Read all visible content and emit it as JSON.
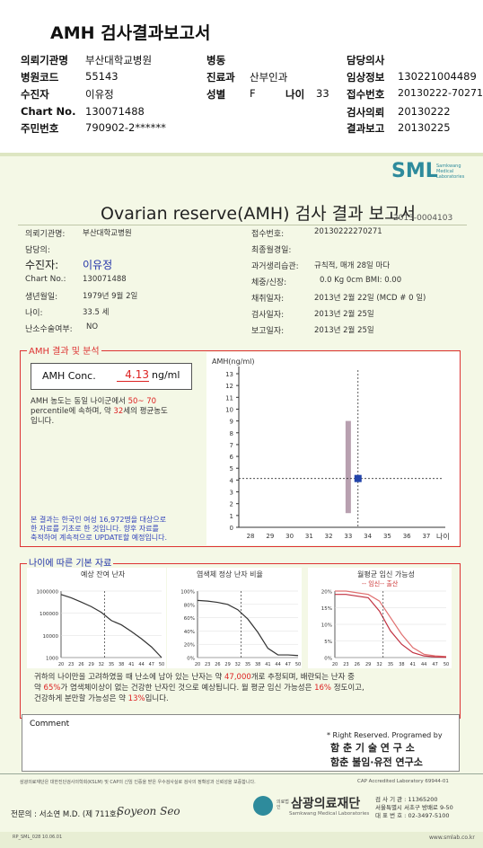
{
  "header": {
    "title": "AMH 검사결과보고서",
    "rows": [
      {
        "label": "의뢰기관명",
        "value": "부산대학교병원"
      },
      {
        "label": "병원코드",
        "value": "55143"
      },
      {
        "label": "수진자",
        "value": "이유정"
      },
      {
        "label": "Chart No.",
        "value": "130071488"
      },
      {
        "label": "주민번호",
        "value": "790902-2******"
      }
    ],
    "mid": {
      "ward_label": "병동",
      "dept_label": "진료과",
      "dept_value": "산부인과",
      "sex_label": "성별",
      "sex_value": "F",
      "age_label": "나이",
      "age_value": "33"
    },
    "right": [
      {
        "label": "담당의사",
        "value": ""
      },
      {
        "label": "임상정보",
        "value": "130221004489"
      },
      {
        "label": "접수번호",
        "value": "20130222-70271"
      },
      {
        "label": "검사의뢰",
        "value": "20130222"
      },
      {
        "label": "결과보고",
        "value": "20130225"
      }
    ]
  },
  "report": {
    "brand": "SML",
    "brand_sub1": "Samkwang",
    "brand_sub2": "Medical",
    "brand_sub3": "Laboratories",
    "title": "Ovarian reserve(AMH) 검사 결과 보고서",
    "doc_no": "2013-0004103",
    "left_info": [
      {
        "label": "의뢰기관명:",
        "value": "부산대학교병원"
      },
      {
        "label": "담당의:",
        "value": ""
      },
      {
        "label": "수진자:",
        "value": "이유정"
      },
      {
        "label": "Chart No.:",
        "value": "130071488"
      },
      {
        "label": "생년월일:",
        "value": "1979년 9월 2일"
      },
      {
        "label": "나이:",
        "value": "33.5 세"
      },
      {
        "label": "난소수술여부:",
        "value": "NO"
      }
    ],
    "right_info": [
      {
        "label": "접수번호:",
        "value": "20130222270271"
      },
      {
        "label": "최종월경일:",
        "value": ""
      },
      {
        "label": "과거생리습관:",
        "value": "규칙적, 매개   28일 마다"
      },
      {
        "label": "체중/신장:",
        "value": "0.0  Kg        0cm     BMI:    0.00"
      },
      {
        "label": "채취일자:",
        "value": "2013년 2월 22일     (MCD #  0 일)"
      },
      {
        "label": "검사일자:",
        "value": "2013년 2월 25일"
      },
      {
        "label": "보고일자:",
        "value": "2013년 2월 25일"
      }
    ],
    "amh_section": "AMH 결과 및 분석",
    "amh_label": "AMH Conc.",
    "amh_value": "4.13",
    "amh_unit": "ng/ml",
    "interp": {
      "t1": "AMH 농도는 동일 나이군에서",
      "range": "50~ 70",
      "t2": "percentile에 속하며, 약",
      "age": "32",
      "t3": "세의 평균농도",
      "t4": "입니다."
    },
    "note": [
      "본 결과는 한국인 여성 16,972명을 대상으로",
      "한 자료를 기초로 한 것입니다. 향후 자료를",
      "축적하여 계속적으로 UPDATE할 예정입니다."
    ],
    "age_section": "나이에 따른 기본 자료",
    "mini_titles": [
      "예상 잔여 난자",
      "염색체 정상 난자 비율",
      "월평균 임신 가능성"
    ],
    "mini_legend": "-- 임신-- 출산",
    "summary": {
      "s1": "귀하의 나이만을 고려하였을 때 난소에 남아 있는 난자는 약",
      "eggs": "47,000",
      "s2": "개로 추정되며, 배란되는 난자 중",
      "s3": "약",
      "pct": "65%",
      "s4": "가 염색체이상이 없는 건강한 난자인 것으로 예상됩니다. 월 평균 임신 가능성은",
      "preg": "16%",
      "s5": "정도이고,",
      "s6": "건강하게 분만할 가능성은 약",
      "birth": "13%",
      "s7": "입니다."
    },
    "comment_label": "Comment",
    "rights": "* Right Reserved. Programed by",
    "org1": "함 춘 기 술 연 구 소",
    "org2": "함춘 불임·유전 연구소",
    "fine": "삼광의료재단은 대한진단검사의학회(KSLM) 및 CAP의 신임 인증을 받은 우수검사실로 검사의 정확성과 신뢰성을 보증합니다.",
    "cap": "CAP  Accredited  Laboratory  69944-01",
    "specialist": "전문의 : 서소연 M.D. (제 711호)",
    "signature": "Soyeon Seo",
    "foundation": "삼광의료재단",
    "foundation_tag": "의료법인",
    "foundation_en": "Samkwang Medical Laboratories",
    "contact": [
      "검 사 기 관 : 11365200",
      "서울특별시 서초구 방배로 9-50",
      "대 표 번 호 : 02-3497-5100"
    ],
    "form_no": "RP_SML_028  10.06.01",
    "url": "www.smlab.co.kr"
  },
  "chart_data": [
    {
      "type": "scatter",
      "title": "",
      "ylabel": "AMH(ng/ml)",
      "xlabel": "나이",
      "x_ticks": [
        28,
        29,
        30,
        31,
        32,
        33,
        34,
        35,
        36,
        37
      ],
      "ylim": [
        0,
        13
      ],
      "range_bar": {
        "x": 33,
        "low": 1.2,
        "high": 9.0
      },
      "point": {
        "x": 33.5,
        "y": 4.13
      },
      "reference_line": {
        "x": 33.5,
        "y": 4.13
      }
    },
    {
      "type": "line",
      "title": "예상 잔여 난자",
      "x": [
        20,
        23,
        26,
        29,
        32,
        35,
        38,
        41,
        44,
        47,
        50
      ],
      "y": [
        700000,
        500000,
        320000,
        200000,
        110000,
        47000,
        30000,
        15000,
        7000,
        3000,
        1000
      ],
      "y_scale": "log",
      "y_ticks": [
        1000000,
        100000,
        10000,
        1000
      ],
      "marker_age": 33
    },
    {
      "type": "line",
      "title": "염색체 정상 난자 비율",
      "x": [
        20,
        23,
        26,
        29,
        32,
        35,
        38,
        41,
        44,
        47,
        50
      ],
      "y": [
        86,
        85,
        83,
        80,
        72,
        58,
        38,
        14,
        4,
        4,
        3
      ],
      "y_ticks": [
        "100%",
        "80%",
        "60%",
        "40%",
        "20%",
        "0%"
      ],
      "marker_age": 33
    },
    {
      "type": "line",
      "title": "월평균 임신 가능성",
      "series": [
        {
          "name": "임신",
          "x": [
            20,
            23,
            26,
            29,
            32,
            35,
            38,
            41,
            44,
            47,
            50
          ],
          "y": [
            20,
            20,
            19.5,
            19,
            17,
            12,
            7,
            3,
            1,
            0.5,
            0.3
          ]
        },
        {
          "name": "출산",
          "x": [
            20,
            23,
            26,
            29,
            32,
            35,
            38,
            41,
            44,
            47,
            50
          ],
          "y": [
            19,
            19,
            18.5,
            18,
            14,
            8,
            4,
            1.5,
            0.5,
            0.2,
            0.1
          ]
        }
      ],
      "y_ticks": [
        "20%",
        "15%",
        "10%",
        "5%",
        "0%"
      ],
      "marker_age": 33
    }
  ]
}
